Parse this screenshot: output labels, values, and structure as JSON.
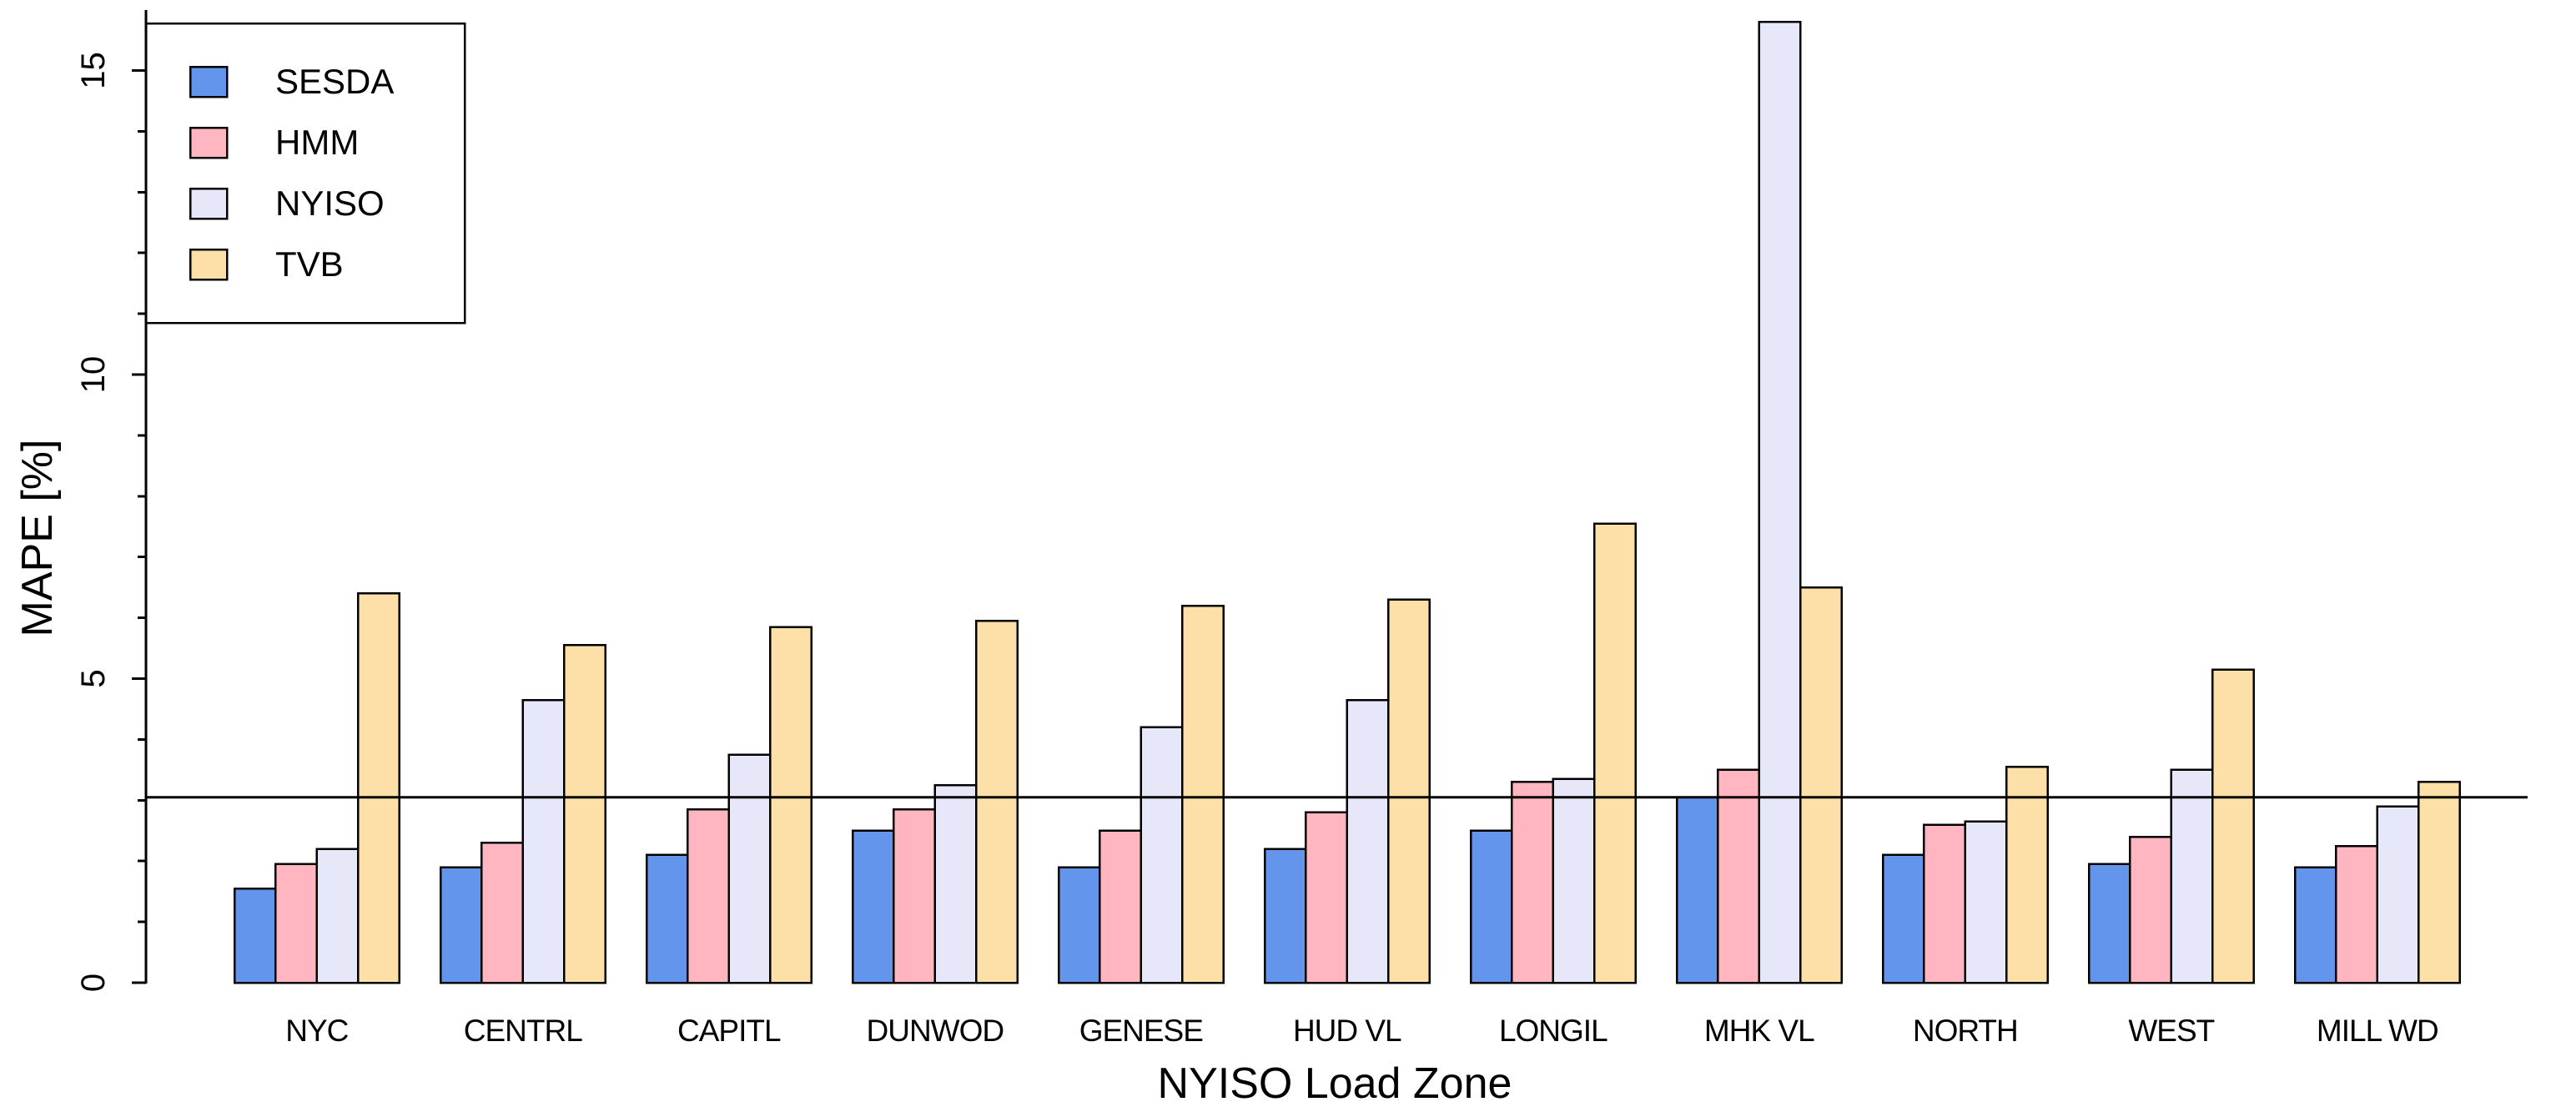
{
  "chart_data": {
    "type": "bar",
    "title": "",
    "xlabel": "NYISO Load Zone",
    "ylabel": "MAPE [%]",
    "categories": [
      "NYC",
      "CENTRL",
      "CAPITL",
      "DUNWOD",
      "GENESE",
      "HUD VL",
      "LONGIL",
      "MHK VL",
      "NORTH",
      "WEST",
      "MILL WD"
    ],
    "series": [
      {
        "name": "SESDA",
        "color": "#6495ED",
        "values": [
          1.55,
          1.9,
          2.1,
          2.5,
          1.9,
          2.2,
          2.5,
          3.05,
          2.1,
          1.95,
          1.9
        ]
      },
      {
        "name": "HMM",
        "color": "#FFB6C1",
        "values": [
          1.95,
          2.3,
          2.85,
          2.85,
          2.5,
          2.8,
          3.3,
          3.5,
          2.6,
          2.4,
          2.25
        ]
      },
      {
        "name": "NYISO",
        "color": "#E6E8FA",
        "values": [
          2.2,
          4.65,
          3.75,
          3.25,
          4.2,
          4.65,
          3.35,
          15.8,
          2.65,
          3.5,
          2.9
        ]
      },
      {
        "name": "TVB",
        "color": "#FCE0A8",
        "values": [
          6.4,
          5.55,
          5.85,
          5.95,
          6.2,
          6.3,
          7.55,
          6.5,
          3.55,
          5.15,
          3.3
        ]
      }
    ],
    "reference_line": 3.05,
    "ylim": [
      0,
      16
    ],
    "yticks_major": [
      0,
      5,
      10,
      15
    ],
    "ytick_minor_step": 1,
    "legend_position": "top-left",
    "grid": false,
    "bar_border_color": "#000000",
    "axis_color": "#000000"
  }
}
